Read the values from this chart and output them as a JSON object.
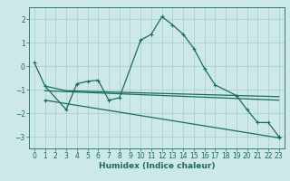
{
  "title": "",
  "xlabel": "Humidex (Indice chaleur)",
  "bg_color": "#cce8e8",
  "grid_color": "#aacccc",
  "line_color": "#1a6b60",
  "xlim": [
    -0.5,
    23.5
  ],
  "ylim": [
    -3.5,
    2.5
  ],
  "yticks": [
    -3,
    -2,
    -1,
    0,
    1,
    2
  ],
  "xticks": [
    0,
    1,
    2,
    3,
    4,
    5,
    6,
    7,
    8,
    9,
    10,
    11,
    12,
    13,
    14,
    15,
    16,
    17,
    18,
    19,
    20,
    21,
    22,
    23
  ],
  "series1_x": [
    0,
    1,
    3,
    4,
    5,
    6,
    7,
    8,
    10,
    11,
    12,
    13,
    14,
    15,
    16,
    17,
    19,
    20,
    21,
    22,
    23
  ],
  "series1_y": [
    0.15,
    -0.85,
    -1.85,
    -0.75,
    -0.65,
    -0.6,
    -1.45,
    -1.35,
    1.1,
    1.35,
    2.1,
    1.75,
    1.35,
    0.75,
    -0.1,
    -0.8,
    -1.25,
    -1.85,
    -2.4,
    -2.4,
    -3.0
  ],
  "series2_x": [
    1,
    3,
    23
  ],
  "series2_y": [
    -0.85,
    -1.05,
    -1.3
  ],
  "series3_x": [
    1,
    23
  ],
  "series3_y": [
    -1.05,
    -1.45
  ],
  "series4_x": [
    1,
    23
  ],
  "series4_y": [
    -1.45,
    -3.05
  ],
  "xlabel_fontsize": 6.5,
  "tick_fontsize": 5.5,
  "linewidth": 0.9
}
